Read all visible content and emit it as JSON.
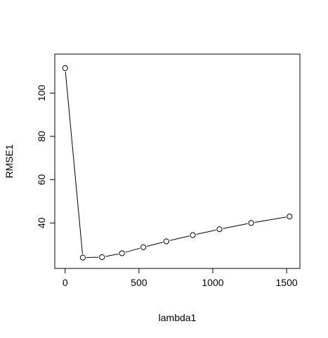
{
  "chart_data": {
    "type": "line",
    "title": "",
    "xlabel": "lambda1",
    "ylabel": "RMSE1",
    "xlim": [
      -70,
      1590
    ],
    "ylim": [
      19,
      118
    ],
    "xticks": [
      0,
      500,
      1000,
      1500
    ],
    "yticks": [
      40,
      60,
      80,
      100
    ],
    "grid": false,
    "legend": "none",
    "style": "both",
    "series": [
      {
        "x": [
          0,
          120,
          250,
          385,
          530,
          685,
          865,
          1045,
          1260,
          1520
        ],
        "y": [
          111.5,
          24.0,
          24.2,
          26.0,
          28.8,
          31.5,
          34.4,
          37.1,
          40.0,
          43.0
        ]
      }
    ]
  }
}
